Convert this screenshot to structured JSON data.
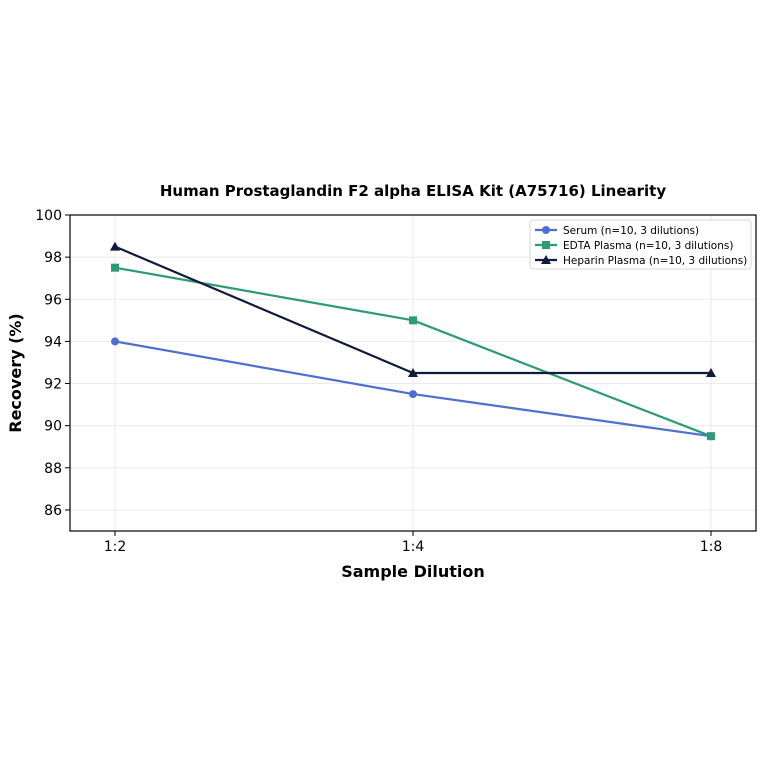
{
  "chart_data": {
    "type": "line",
    "title": "Human Prostaglandin F2 alpha ELISA Kit (A75716) Linearity",
    "xlabel": "Sample Dilution",
    "ylabel": "Recovery (%)",
    "categories": [
      "1:2",
      "1:4",
      "1:8"
    ],
    "ylim": [
      85,
      100
    ],
    "yticks": [
      86,
      88,
      90,
      92,
      94,
      96,
      98,
      100
    ],
    "grid": true,
    "legend_position": "top-right",
    "series": [
      {
        "name": "Serum (n=10, 3 dilutions)",
        "values": [
          94.0,
          91.5,
          89.5
        ],
        "color": "#4f6fd0",
        "marker": "circle"
      },
      {
        "name": "EDTA Plasma (n=10, 3 dilutions)",
        "values": [
          97.5,
          95.0,
          89.5
        ],
        "color": "#2e9b73",
        "marker": "square"
      },
      {
        "name": "Heparin Plasma (n=10, 3 dilutions)",
        "values": [
          98.5,
          92.5,
          92.5
        ],
        "color": "#111b3a",
        "marker": "triangle"
      }
    ]
  }
}
